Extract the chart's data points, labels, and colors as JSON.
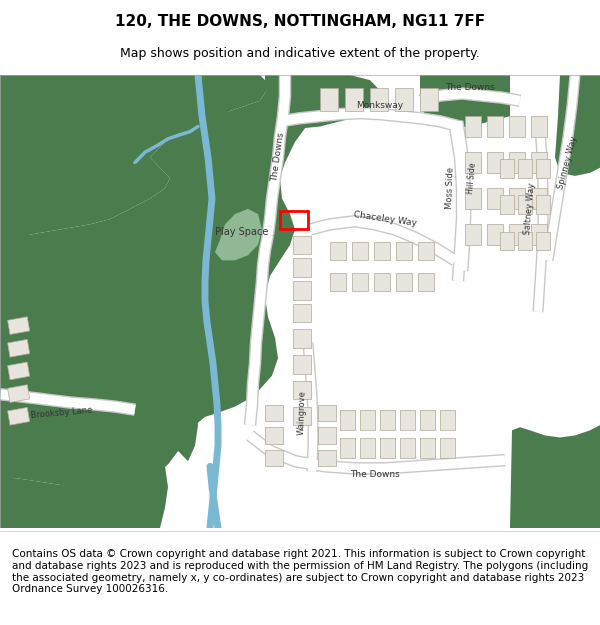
{
  "title": "120, THE DOWNS, NOTTINGHAM, NG11 7FF",
  "subtitle": "Map shows position and indicative extent of the property.",
  "footer": "Contains OS data © Crown copyright and database right 2021. This information is subject to Crown copyright and database rights 2023 and is reproduced with the permission of HM Land Registry. The polygons (including the associated geometry, namely x, y co-ordinates) are subject to Crown copyright and database rights 2023 Ordnance Survey 100026316.",
  "bg_color": "#ffffff",
  "map_bg": "#ffffff",
  "green_dark": "#4a7c4e",
  "green_light": "#90b894",
  "blue_river": "#7ab8d4",
  "road_color": "#ffffff",
  "road_border": "#cccccc",
  "building_color": "#e8e0d8",
  "building_border": "#aaaaaa",
  "highlight_color": "#ff0000",
  "title_fontsize": 11,
  "subtitle_fontsize": 9,
  "footer_fontsize": 7.5
}
